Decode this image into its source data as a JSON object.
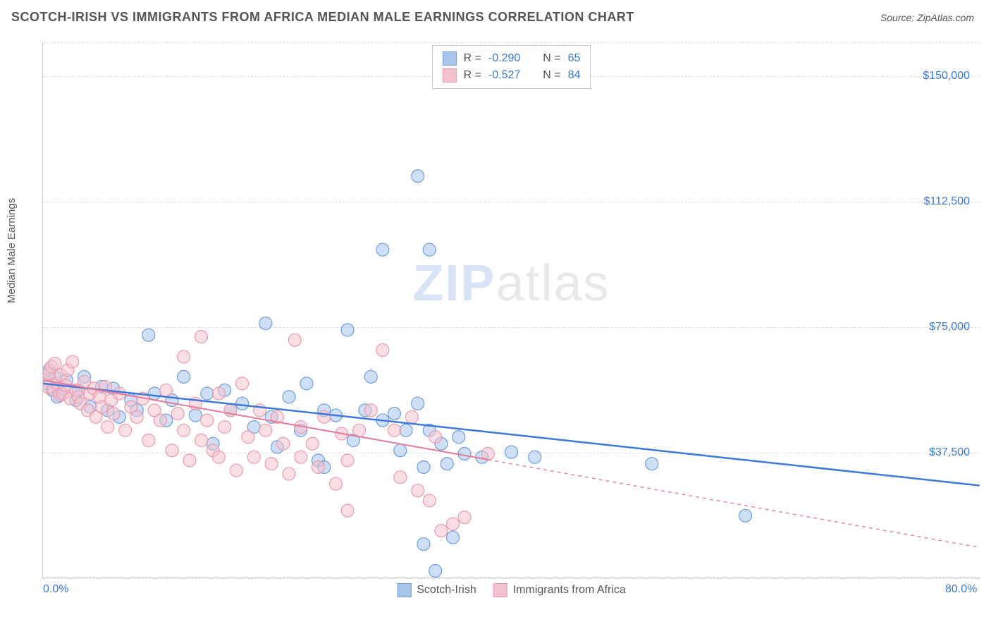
{
  "header": {
    "title": "SCOTCH-IRISH VS IMMIGRANTS FROM AFRICA MEDIAN MALE EARNINGS CORRELATION CHART",
    "source_prefix": "Source: ",
    "source": "ZipAtlas.com"
  },
  "watermark": {
    "zip": "ZIP",
    "atlas": "atlas"
  },
  "chart": {
    "type": "scatter",
    "y_axis_label": "Median Male Earnings",
    "xlim": [
      0,
      80
    ],
    "ylim": [
      0,
      160000
    ],
    "x_ticks": [
      {
        "v": 0,
        "label": "0.0%"
      },
      {
        "v": 80,
        "label": "80.0%"
      }
    ],
    "y_ticks": [
      {
        "v": 37500,
        "label": "$37,500"
      },
      {
        "v": 75000,
        "label": "$75,000"
      },
      {
        "v": 112500,
        "label": "$112,500"
      },
      {
        "v": 150000,
        "label": "$150,000"
      }
    ],
    "gridlines_y": [
      0,
      37500,
      75000,
      112500,
      150000,
      160000
    ],
    "background_color": "#ffffff",
    "grid_color": "#dddddd",
    "axis_color": "#cccccc",
    "tick_label_color": "#3b78d8",
    "marker_radius": 9,
    "marker_opacity": 0.55,
    "marker_stroke_width": 1.2,
    "series": [
      {
        "id": "scotch-irish",
        "label": "Scotch-Irish",
        "color_fill": "#a8c5ec",
        "color_stroke": "#6d9de0",
        "R": "-0.290",
        "N": "65",
        "regression": {
          "start": {
            "x": 0,
            "y": 58000
          },
          "end": {
            "x": 80,
            "y": 27500
          },
          "solid_until_x": 80,
          "line_color": "#3b78d8",
          "line_width": 2.5,
          "dash_pattern": "6,6"
        },
        "points": [
          {
            "x": 0.3,
            "y": 58000
          },
          {
            "x": 0.5,
            "y": 62000
          },
          {
            "x": 0.8,
            "y": 56000
          },
          {
            "x": 1.0,
            "y": 60000
          },
          {
            "x": 1.5,
            "y": 55000
          },
          {
            "x": 2,
            "y": 59000
          },
          {
            "x": 2.8,
            "y": 53000
          },
          {
            "x": 3.5,
            "y": 60000
          },
          {
            "x": 4,
            "y": 51000
          },
          {
            "x": 5,
            "y": 57000
          },
          {
            "x": 6,
            "y": 56500
          },
          {
            "x": 6.5,
            "y": 48000
          },
          {
            "x": 7.5,
            "y": 53000
          },
          {
            "x": 8,
            "y": 50000
          },
          {
            "x": 9,
            "y": 72500
          },
          {
            "x": 9.5,
            "y": 55000
          },
          {
            "x": 10.5,
            "y": 47000
          },
          {
            "x": 11,
            "y": 53000
          },
          {
            "x": 12,
            "y": 60000
          },
          {
            "x": 13,
            "y": 48500
          },
          {
            "x": 14,
            "y": 55000
          },
          {
            "x": 14.5,
            "y": 40000
          },
          {
            "x": 15.5,
            "y": 56000
          },
          {
            "x": 16,
            "y": 50000
          },
          {
            "x": 17,
            "y": 52000
          },
          {
            "x": 18,
            "y": 45000
          },
          {
            "x": 19,
            "y": 76000
          },
          {
            "x": 19.5,
            "y": 48000
          },
          {
            "x": 20,
            "y": 39000
          },
          {
            "x": 21,
            "y": 54000
          },
          {
            "x": 22,
            "y": 44000
          },
          {
            "x": 22.5,
            "y": 58000
          },
          {
            "x": 23.5,
            "y": 35000
          },
          {
            "x": 24,
            "y": 50000
          },
          {
            "x": 24,
            "y": 33000
          },
          {
            "x": 25,
            "y": 48500
          },
          {
            "x": 26,
            "y": 74000
          },
          {
            "x": 26.5,
            "y": 41000
          },
          {
            "x": 27.5,
            "y": 50000
          },
          {
            "x": 28,
            "y": 60000
          },
          {
            "x": 29,
            "y": 98000
          },
          {
            "x": 29,
            "y": 47000
          },
          {
            "x": 30,
            "y": 49000
          },
          {
            "x": 30.5,
            "y": 38000
          },
          {
            "x": 31,
            "y": 44000
          },
          {
            "x": 32,
            "y": 120000
          },
          {
            "x": 32,
            "y": 52000
          },
          {
            "x": 32.5,
            "y": 33000
          },
          {
            "x": 32.5,
            "y": 10000
          },
          {
            "x": 33,
            "y": 98000
          },
          {
            "x": 33,
            "y": 44000
          },
          {
            "x": 33.5,
            "y": 2000
          },
          {
            "x": 34,
            "y": 40000
          },
          {
            "x": 34.5,
            "y": 34000
          },
          {
            "x": 35,
            "y": 12000
          },
          {
            "x": 35.5,
            "y": 42000
          },
          {
            "x": 36,
            "y": 37000
          },
          {
            "x": 37.5,
            "y": 36000
          },
          {
            "x": 40,
            "y": 37500
          },
          {
            "x": 42,
            "y": 36000
          },
          {
            "x": 52,
            "y": 34000
          },
          {
            "x": 60,
            "y": 18500
          },
          {
            "x": 1.2,
            "y": 54000
          },
          {
            "x": 3,
            "y": 56000
          },
          {
            "x": 5.5,
            "y": 50000
          }
        ]
      },
      {
        "id": "immigrants-africa",
        "label": "Immigrants from Africa",
        "color_fill": "#f4c2cd",
        "color_stroke": "#eb9aad",
        "R": "-0.527",
        "N": "84",
        "regression": {
          "start": {
            "x": 0,
            "y": 59000
          },
          "end": {
            "x": 80,
            "y": 9000
          },
          "solid_until_x": 38,
          "line_color": "#e87a9a",
          "line_width": 2,
          "dash_pattern": "5,5"
        },
        "points": [
          {
            "x": 0.2,
            "y": 59000
          },
          {
            "x": 0.4,
            "y": 57000
          },
          {
            "x": 0.5,
            "y": 61000
          },
          {
            "x": 0.7,
            "y": 63000
          },
          {
            "x": 0.9,
            "y": 56000
          },
          {
            "x": 1,
            "y": 64000
          },
          {
            "x": 1.2,
            "y": 58000
          },
          {
            "x": 1.4,
            "y": 54500
          },
          {
            "x": 1.5,
            "y": 60500
          },
          {
            "x": 1.7,
            "y": 55000
          },
          {
            "x": 1.9,
            "y": 57500
          },
          {
            "x": 2.1,
            "y": 62000
          },
          {
            "x": 2.3,
            "y": 53500
          },
          {
            "x": 2.5,
            "y": 64500
          },
          {
            "x": 2.8,
            "y": 56000
          },
          {
            "x": 3,
            "y": 54000
          },
          {
            "x": 3.2,
            "y": 52000
          },
          {
            "x": 3.5,
            "y": 58500
          },
          {
            "x": 3.8,
            "y": 50000
          },
          {
            "x": 4,
            "y": 55000
          },
          {
            "x": 4.3,
            "y": 56500
          },
          {
            "x": 4.5,
            "y": 48000
          },
          {
            "x": 4.8,
            "y": 54000
          },
          {
            "x": 5,
            "y": 51000
          },
          {
            "x": 5.3,
            "y": 57000
          },
          {
            "x": 5.5,
            "y": 45000
          },
          {
            "x": 5.8,
            "y": 53000
          },
          {
            "x": 6,
            "y": 49000
          },
          {
            "x": 6.5,
            "y": 55000
          },
          {
            "x": 7,
            "y": 44000
          },
          {
            "x": 7.5,
            "y": 51000
          },
          {
            "x": 8,
            "y": 48000
          },
          {
            "x": 8.5,
            "y": 53500
          },
          {
            "x": 9,
            "y": 41000
          },
          {
            "x": 9.5,
            "y": 50000
          },
          {
            "x": 10,
            "y": 47000
          },
          {
            "x": 10.5,
            "y": 56000
          },
          {
            "x": 11,
            "y": 38000
          },
          {
            "x": 11.5,
            "y": 49000
          },
          {
            "x": 12,
            "y": 66000
          },
          {
            "x": 12,
            "y": 44000
          },
          {
            "x": 12.5,
            "y": 35000
          },
          {
            "x": 13,
            "y": 52000
          },
          {
            "x": 13.5,
            "y": 72000
          },
          {
            "x": 13.5,
            "y": 41000
          },
          {
            "x": 14,
            "y": 47000
          },
          {
            "x": 14.5,
            "y": 38000
          },
          {
            "x": 15,
            "y": 55000
          },
          {
            "x": 15,
            "y": 36000
          },
          {
            "x": 15.5,
            "y": 45000
          },
          {
            "x": 16,
            "y": 50000
          },
          {
            "x": 16.5,
            "y": 32000
          },
          {
            "x": 17,
            "y": 58000
          },
          {
            "x": 17.5,
            "y": 42000
          },
          {
            "x": 18,
            "y": 36000
          },
          {
            "x": 18.5,
            "y": 50000
          },
          {
            "x": 19,
            "y": 44000
          },
          {
            "x": 19.5,
            "y": 34000
          },
          {
            "x": 20,
            "y": 48000
          },
          {
            "x": 20.5,
            "y": 40000
          },
          {
            "x": 21,
            "y": 31000
          },
          {
            "x": 21.5,
            "y": 71000
          },
          {
            "x": 22,
            "y": 45000
          },
          {
            "x": 22,
            "y": 36000
          },
          {
            "x": 23,
            "y": 40000
          },
          {
            "x": 23.5,
            "y": 33000
          },
          {
            "x": 24,
            "y": 48000
          },
          {
            "x": 25,
            "y": 28000
          },
          {
            "x": 25.5,
            "y": 43000
          },
          {
            "x": 26,
            "y": 35000
          },
          {
            "x": 26,
            "y": 20000
          },
          {
            "x": 27,
            "y": 44000
          },
          {
            "x": 28,
            "y": 50000
          },
          {
            "x": 29,
            "y": 68000
          },
          {
            "x": 30,
            "y": 44000
          },
          {
            "x": 30.5,
            "y": 30000
          },
          {
            "x": 31.5,
            "y": 48000
          },
          {
            "x": 32,
            "y": 26000
          },
          {
            "x": 33,
            "y": 23000
          },
          {
            "x": 33.5,
            "y": 42000
          },
          {
            "x": 34,
            "y": 14000
          },
          {
            "x": 35,
            "y": 16000
          },
          {
            "x": 36,
            "y": 18000
          },
          {
            "x": 38,
            "y": 37000
          }
        ]
      }
    ],
    "legend_bottom": [
      {
        "label": "Scotch-Irish",
        "fill": "#a8c5ec",
        "stroke": "#6d9de0"
      },
      {
        "label": "Immigrants from Africa",
        "fill": "#f4c2cd",
        "stroke": "#eb9aad"
      }
    ]
  }
}
